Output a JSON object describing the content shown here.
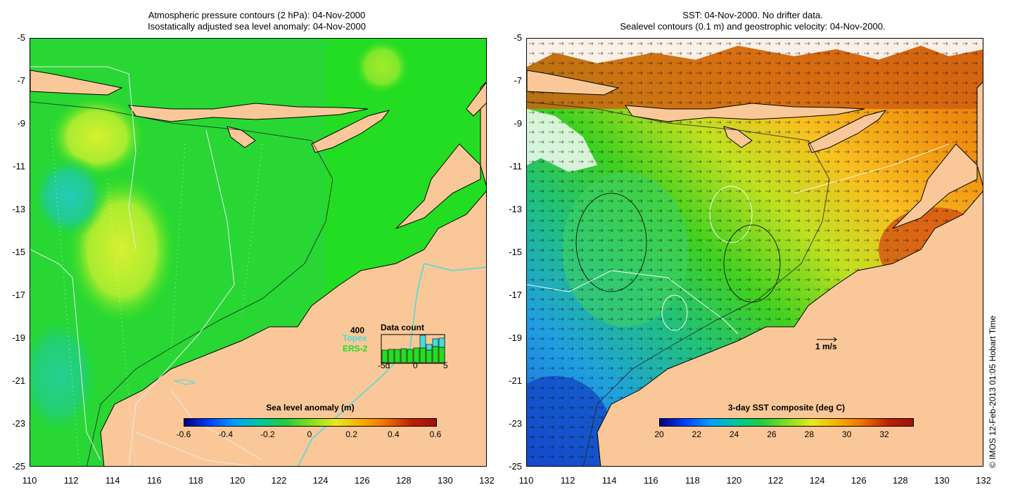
{
  "left_panel": {
    "title_line1": "Atmospheric pressure contours (2 hPa): 04-Nov-2000",
    "title_line2": "Isostatically adjusted sea level anomaly: 04-Nov-2000",
    "colorbar_title": "Sea level anomaly (m)",
    "colorbar_ticks": [
      "-0.6",
      "-0.4",
      "-0.2",
      "0",
      "0.2",
      "0.4",
      "0.6"
    ],
    "data_count": {
      "title": "Data count",
      "max_label": "400",
      "topex_label": "Topex",
      "ers_label": "ERS-2",
      "x_ticks": [
        "-5d",
        "0",
        "5"
      ],
      "ers2_counts": [
        180,
        190,
        190,
        200,
        190,
        210,
        210,
        180,
        230,
        220
      ],
      "topex_counts": [
        0,
        0,
        0,
        0,
        0,
        0,
        180,
        80,
        110,
        130
      ]
    }
  },
  "right_panel": {
    "title_line1": "SST: 04-Nov-2000. No drifter data.",
    "title_line2": "Sealevel contours (0.1 m) and geostrophic velocity: 04-Nov-2000.",
    "colorbar_title": "3-day SST composite (deg C)",
    "colorbar_ticks": [
      "20",
      "22",
      "24",
      "26",
      "28",
      "30",
      "32"
    ],
    "velocity_scale_label": "1 m/s"
  },
  "axes": {
    "y_ticks": [
      "-5",
      "-7",
      "-9",
      "-11",
      "-13",
      "-15",
      "-17",
      "-19",
      "-21",
      "-23",
      "-25"
    ],
    "x_ticks": [
      "110",
      "112",
      "114",
      "116",
      "118",
      "120",
      "122",
      "124",
      "126",
      "128",
      "130",
      "132"
    ]
  },
  "copyright": "© IMOS 12-Feb-2013 01:05 Hobart Time",
  "colors": {
    "land": "#fac898",
    "ocean_green": "#22dd22",
    "coast": "#000000",
    "cyan_line": "#44dddd"
  }
}
